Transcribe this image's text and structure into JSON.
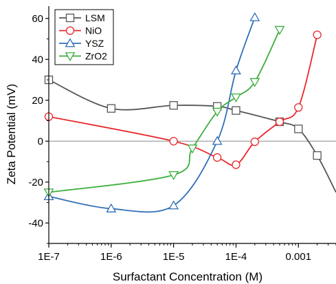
{
  "chart_data": {
    "type": "line",
    "xlabel": "Surfactant Concentration (M)",
    "ylabel": "Zeta Potential (mV)",
    "x_scale": "log",
    "xlim": [
      1e-07,
      0.004
    ],
    "ylim": [
      -50,
      66
    ],
    "x_ticks": [
      {
        "value": 1e-07,
        "label": "1E-7"
      },
      {
        "value": 1e-06,
        "label": "1E-6"
      },
      {
        "value": 1e-05,
        "label": "1E-5"
      },
      {
        "value": 0.0001,
        "label": "1E-4"
      },
      {
        "value": 0.001,
        "label": "0.001"
      }
    ],
    "y_ticks": [
      -40,
      -20,
      0,
      20,
      40,
      60
    ],
    "y_tick_labels": [
      "-40",
      "-20",
      "0",
      "20",
      "40",
      "60"
    ],
    "reference_line_y": 0,
    "legend_position": "top-left",
    "series": [
      {
        "name": "LSM",
        "color": "#555555",
        "marker": "square",
        "points": [
          [
            1e-07,
            30
          ],
          [
            1e-06,
            16
          ],
          [
            1e-05,
            17.5
          ],
          [
            5e-05,
            17
          ],
          [
            0.0001,
            15
          ],
          [
            0.0005,
            9.5
          ],
          [
            0.001,
            6
          ],
          [
            0.002,
            -7
          ]
        ],
        "curve_extend_to": [
          0.004,
          -25
        ]
      },
      {
        "name": "NiO",
        "color": "#e8262b",
        "marker": "circle",
        "points": [
          [
            1e-07,
            12
          ],
          [
            1e-05,
            0
          ],
          [
            5e-05,
            -8
          ],
          [
            0.0001,
            -11.5
          ],
          [
            0.0002,
            -0.3
          ],
          [
            0.0005,
            9.5
          ],
          [
            0.001,
            16.5
          ],
          [
            0.002,
            52
          ]
        ]
      },
      {
        "name": "YSZ",
        "color": "#2f6fb8",
        "marker": "triangle-up",
        "points": [
          [
            1e-07,
            -27
          ],
          [
            1e-06,
            -33
          ],
          [
            1e-05,
            -31.5
          ],
          [
            5e-05,
            0
          ],
          [
            0.0001,
            34.5
          ],
          [
            0.0002,
            60.5
          ]
        ]
      },
      {
        "name": "ZrO2",
        "color": "#3aae3a",
        "marker": "triangle-down",
        "points": [
          [
            1e-07,
            -25
          ],
          [
            1e-05,
            -16.5
          ],
          [
            2e-05,
            -3.5
          ],
          [
            5e-05,
            14.5
          ],
          [
            0.0001,
            21.5
          ],
          [
            0.0002,
            29
          ],
          [
            0.0005,
            54.5
          ]
        ]
      }
    ]
  }
}
